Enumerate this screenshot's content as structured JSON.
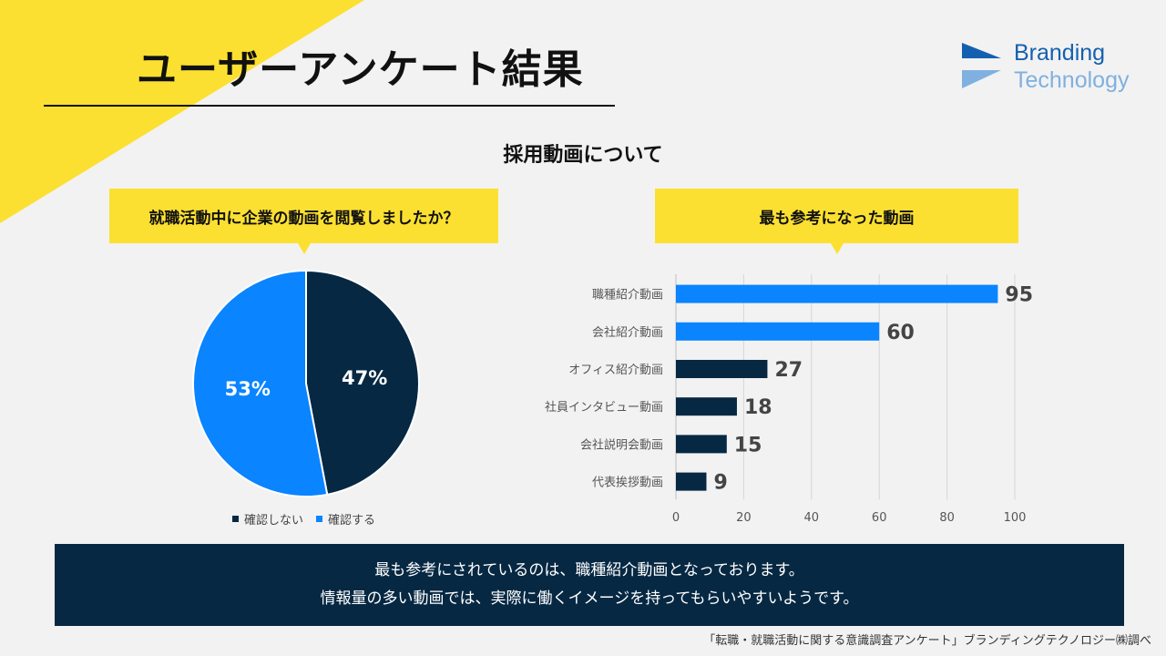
{
  "title": "ユーザーアンケート結果",
  "section_title": "採用動画について",
  "logo": {
    "line1": "Branding",
    "line2": "Technology",
    "colors": {
      "dark": "#1460b0",
      "light": "#7fb0e0"
    }
  },
  "colors": {
    "accent_yellow": "#fce031",
    "navy": "#062843",
    "blue": "#0a84ff",
    "background": "#f2f2f2"
  },
  "q1": {
    "question": "就職活動中に企業の動画を閲覧しましたか？"
  },
  "q2": {
    "question": "最も参考になった動画"
  },
  "summary": {
    "line1": "最も参考にされているのは、職種紹介動画となっております。",
    "line2": "情報量の多い動画では、実際に働くイメージを持ってもらいやすいようです。"
  },
  "source": "「転職・就職活動に関する意識調査アンケート」ブランディングテクノロジー㈱調べ",
  "chart_data": [
    {
      "type": "pie",
      "title": "就職活動中に企業の動画を閲覧しましたか？",
      "slices": [
        {
          "label": "確認しない",
          "value": 47,
          "display": "47%",
          "color": "#062843"
        },
        {
          "label": "確認する",
          "value": 53,
          "display": "53%",
          "color": "#0a84ff"
        }
      ],
      "legend_position": "bottom"
    },
    {
      "type": "bar",
      "orientation": "horizontal",
      "title": "最も参考になった動画",
      "categories": [
        "職種紹介動画",
        "会社紹介動画",
        "オフィス紹介動画",
        "社員インタビュー動画",
        "会社説明会動画",
        "代表挨拶動画"
      ],
      "values": [
        95,
        60,
        27,
        18,
        15,
        9
      ],
      "colors": [
        "#0a84ff",
        "#0a84ff",
        "#062843",
        "#062843",
        "#062843",
        "#062843"
      ],
      "xlim": [
        0,
        100
      ],
      "xticks": [
        0,
        20,
        40,
        60,
        80,
        100
      ],
      "grid": true
    }
  ]
}
